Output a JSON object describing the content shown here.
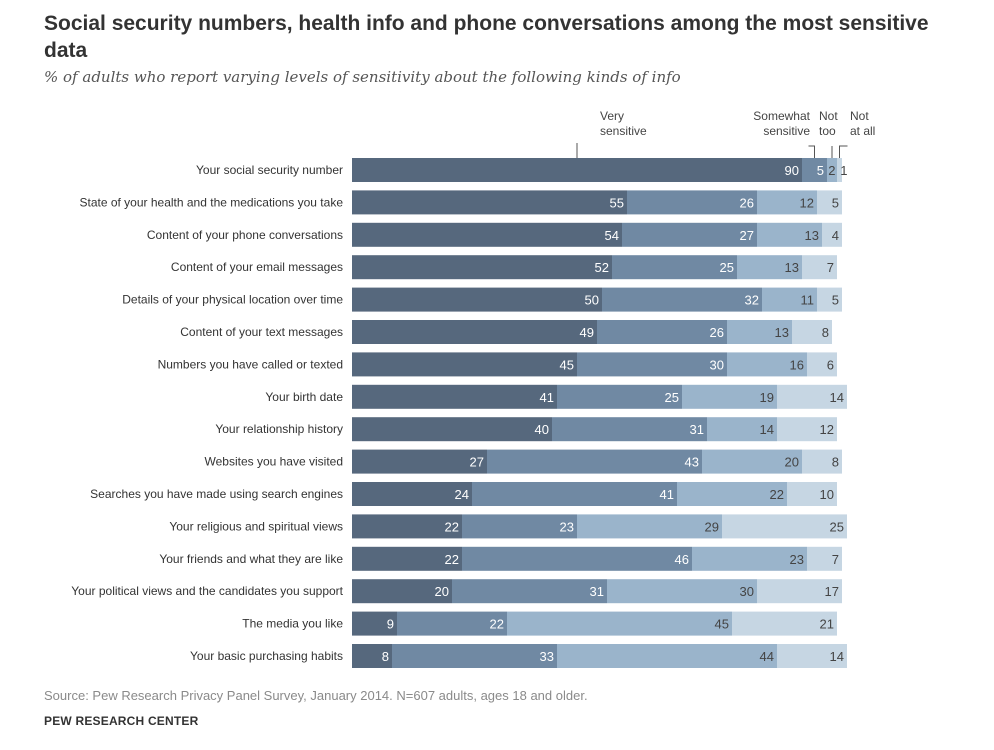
{
  "title": "Social security numbers, health info and phone conversations among the most sensitive data",
  "subtitle": "% of adults who report varying levels of sensitivity about the following kinds of info",
  "source": "Source: Pew Research Privacy Panel Survey, January 2014. N=607 adults, ages 18 and older.",
  "brand": "PEW RESEARCH CENTER",
  "header_labels": {
    "very": [
      "Very",
      "sensitive"
    ],
    "somewhat": [
      "Somewhat",
      "sensitive"
    ],
    "not_too": [
      "Not",
      "too"
    ],
    "not_at_all": [
      "Not",
      "at all"
    ]
  },
  "colors": {
    "very": "#56687d",
    "somewhat": "#7089a3",
    "not_too": "#9ab4cb",
    "not_at_all": "#c6d6e3",
    "label_dark_bg": "#ffffff",
    "label_light_bg": "#444444"
  },
  "chart_data": {
    "type": "bar",
    "orientation": "horizontal",
    "stacked": true,
    "title": "Social security numbers, health info and phone conversations among the most sensitive data",
    "subtitle": "% of adults who report varying levels of sensitivity about the following kinds of info",
    "xlim": [
      0,
      100
    ],
    "unit": "%",
    "legend": "top (labels above first bar)",
    "categories": [
      "Your social security number",
      "State of your health and the medications you take",
      "Content of your phone conversations",
      "Content of your email messages",
      "Details of your physical location over time",
      "Content of your text messages",
      "Numbers you have called or texted",
      "Your birth date",
      "Your relationship history",
      "Websites you have visited",
      "Searches you have made using search engines",
      "Your religious and spiritual views",
      "Your friends and what they are like",
      "Your political views and the candidates you support",
      "The media you like",
      "Your basic purchasing habits"
    ],
    "series": [
      {
        "name": "Very sensitive",
        "key": "very",
        "values": [
          90,
          55,
          54,
          52,
          50,
          49,
          45,
          41,
          40,
          27,
          24,
          22,
          22,
          20,
          9,
          8
        ]
      },
      {
        "name": "Somewhat sensitive",
        "key": "somewhat",
        "values": [
          5,
          26,
          27,
          25,
          32,
          26,
          30,
          25,
          31,
          43,
          41,
          23,
          46,
          31,
          22,
          33
        ]
      },
      {
        "name": "Not too sensitive",
        "key": "not_too",
        "values": [
          2,
          12,
          13,
          13,
          11,
          13,
          16,
          19,
          14,
          20,
          22,
          29,
          23,
          30,
          45,
          44
        ]
      },
      {
        "name": "Not at all sensitive",
        "key": "not_at_all",
        "values": [
          1,
          5,
          4,
          7,
          5,
          8,
          6,
          14,
          12,
          8,
          10,
          25,
          7,
          17,
          21,
          14
        ]
      }
    ]
  }
}
